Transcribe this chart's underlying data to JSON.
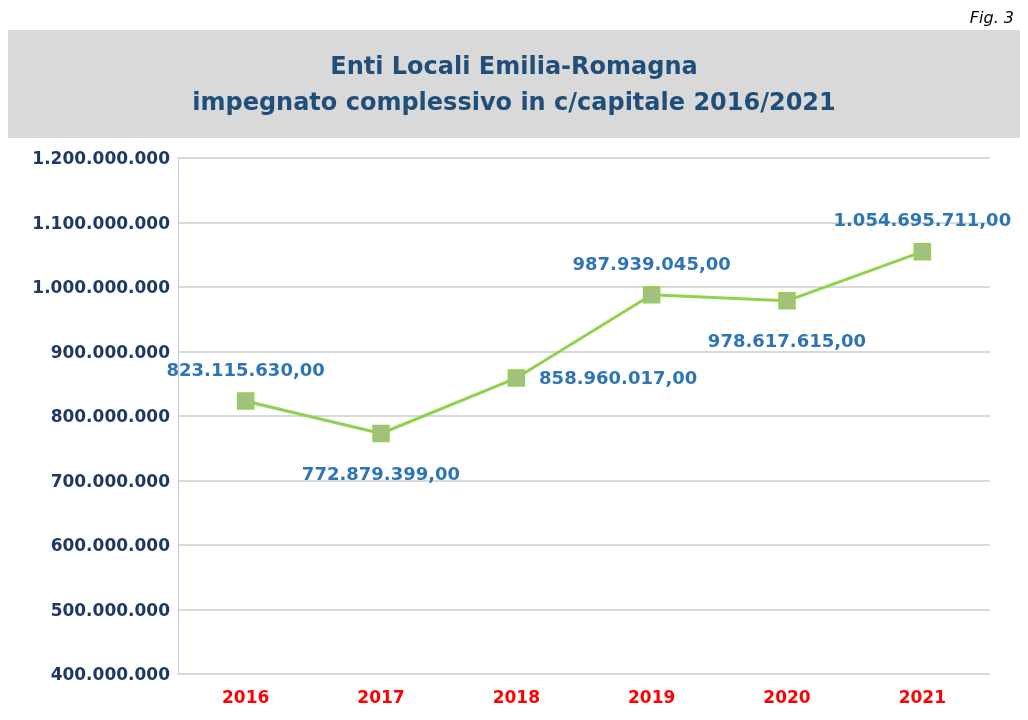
{
  "chart_data": {
    "type": "line",
    "title": "Enti Locali Emilia-Romagna\nimpegnato complessivo in c/capitale 2016/2021",
    "annotations": [
      "Fig. 3"
    ],
    "categories": [
      "2016",
      "2017",
      "2018",
      "2019",
      "2020",
      "2021"
    ],
    "series": [
      {
        "color": "#92d050",
        "values": [
          823115630,
          772879399,
          858960017,
          987939045,
          978617615,
          1054695711
        ],
        "value_labels": [
          "823.115.630,00",
          "772.879.399,00",
          "858.960.017,00",
          "987.939.045,00",
          "978.617.615,00",
          "1.054.695.711,00"
        ]
      }
    ],
    "ylim": [
      400000000,
      1200000000
    ],
    "yticks": [
      {
        "value": 400000000,
        "label": "400.000.000"
      },
      {
        "value": 500000000,
        "label": "500.000.000"
      },
      {
        "value": 600000000,
        "label": "600.000.000"
      },
      {
        "value": 700000000,
        "label": "700.000.000"
      },
      {
        "value": 800000000,
        "label": "800.000.000"
      },
      {
        "value": 900000000,
        "label": "900.000.000"
      },
      {
        "value": 1000000000,
        "label": "1.000.000.000"
      },
      {
        "value": 1100000000,
        "label": "1.100.000.000"
      },
      {
        "value": 1200000000,
        "label": "1.200.000.000"
      }
    ],
    "grid": "y",
    "marker": "square",
    "line_style": "solid"
  }
}
